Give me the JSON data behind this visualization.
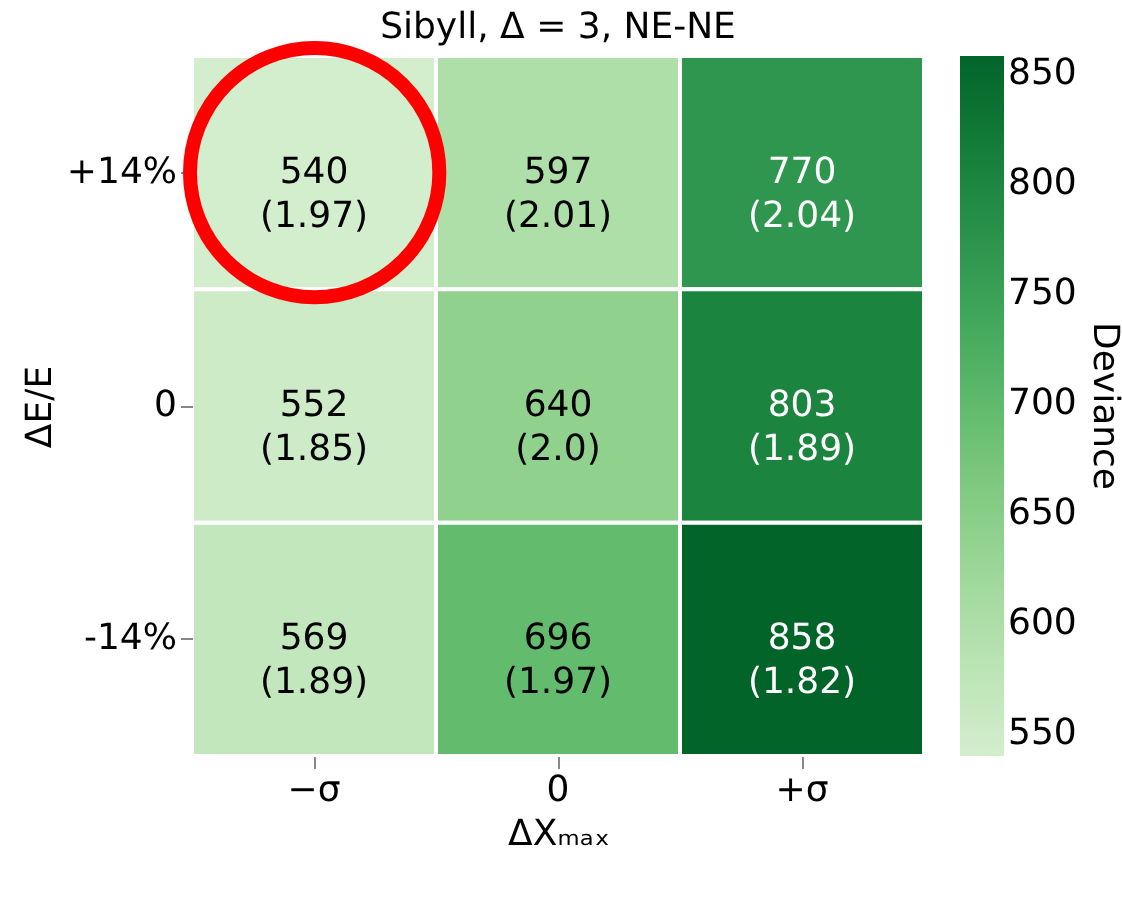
{
  "chart_data": {
    "type": "heatmap",
    "title": "Sibyll, Δ = 3, NE-NE",
    "xlabel": "ΔXₘₐₓ",
    "ylabel": "ΔE/E",
    "clabel": "Deviance",
    "categories": [
      "−σ",
      "0",
      "+σ"
    ],
    "y_categories": [
      "+14%",
      "0",
      "-14%"
    ],
    "cells": [
      [
        540,
        597,
        770
      ],
      [
        552,
        640,
        803
      ],
      [
        569,
        696,
        858
      ]
    ],
    "cell_labels": [
      [
        "540\n(1.97)",
        "597\n(2.01)",
        "770\n(2.04)"
      ],
      [
        "552\n(1.85)",
        "640\n(2.0)",
        "803\n(1.89)"
      ],
      [
        "569\n(1.89)",
        "696\n(1.97)",
        "858\n(1.82)"
      ]
    ],
    "clim": [
      540,
      858
    ],
    "cticks": [
      550,
      600,
      650,
      700,
      750,
      800,
      850
    ]
  }
}
